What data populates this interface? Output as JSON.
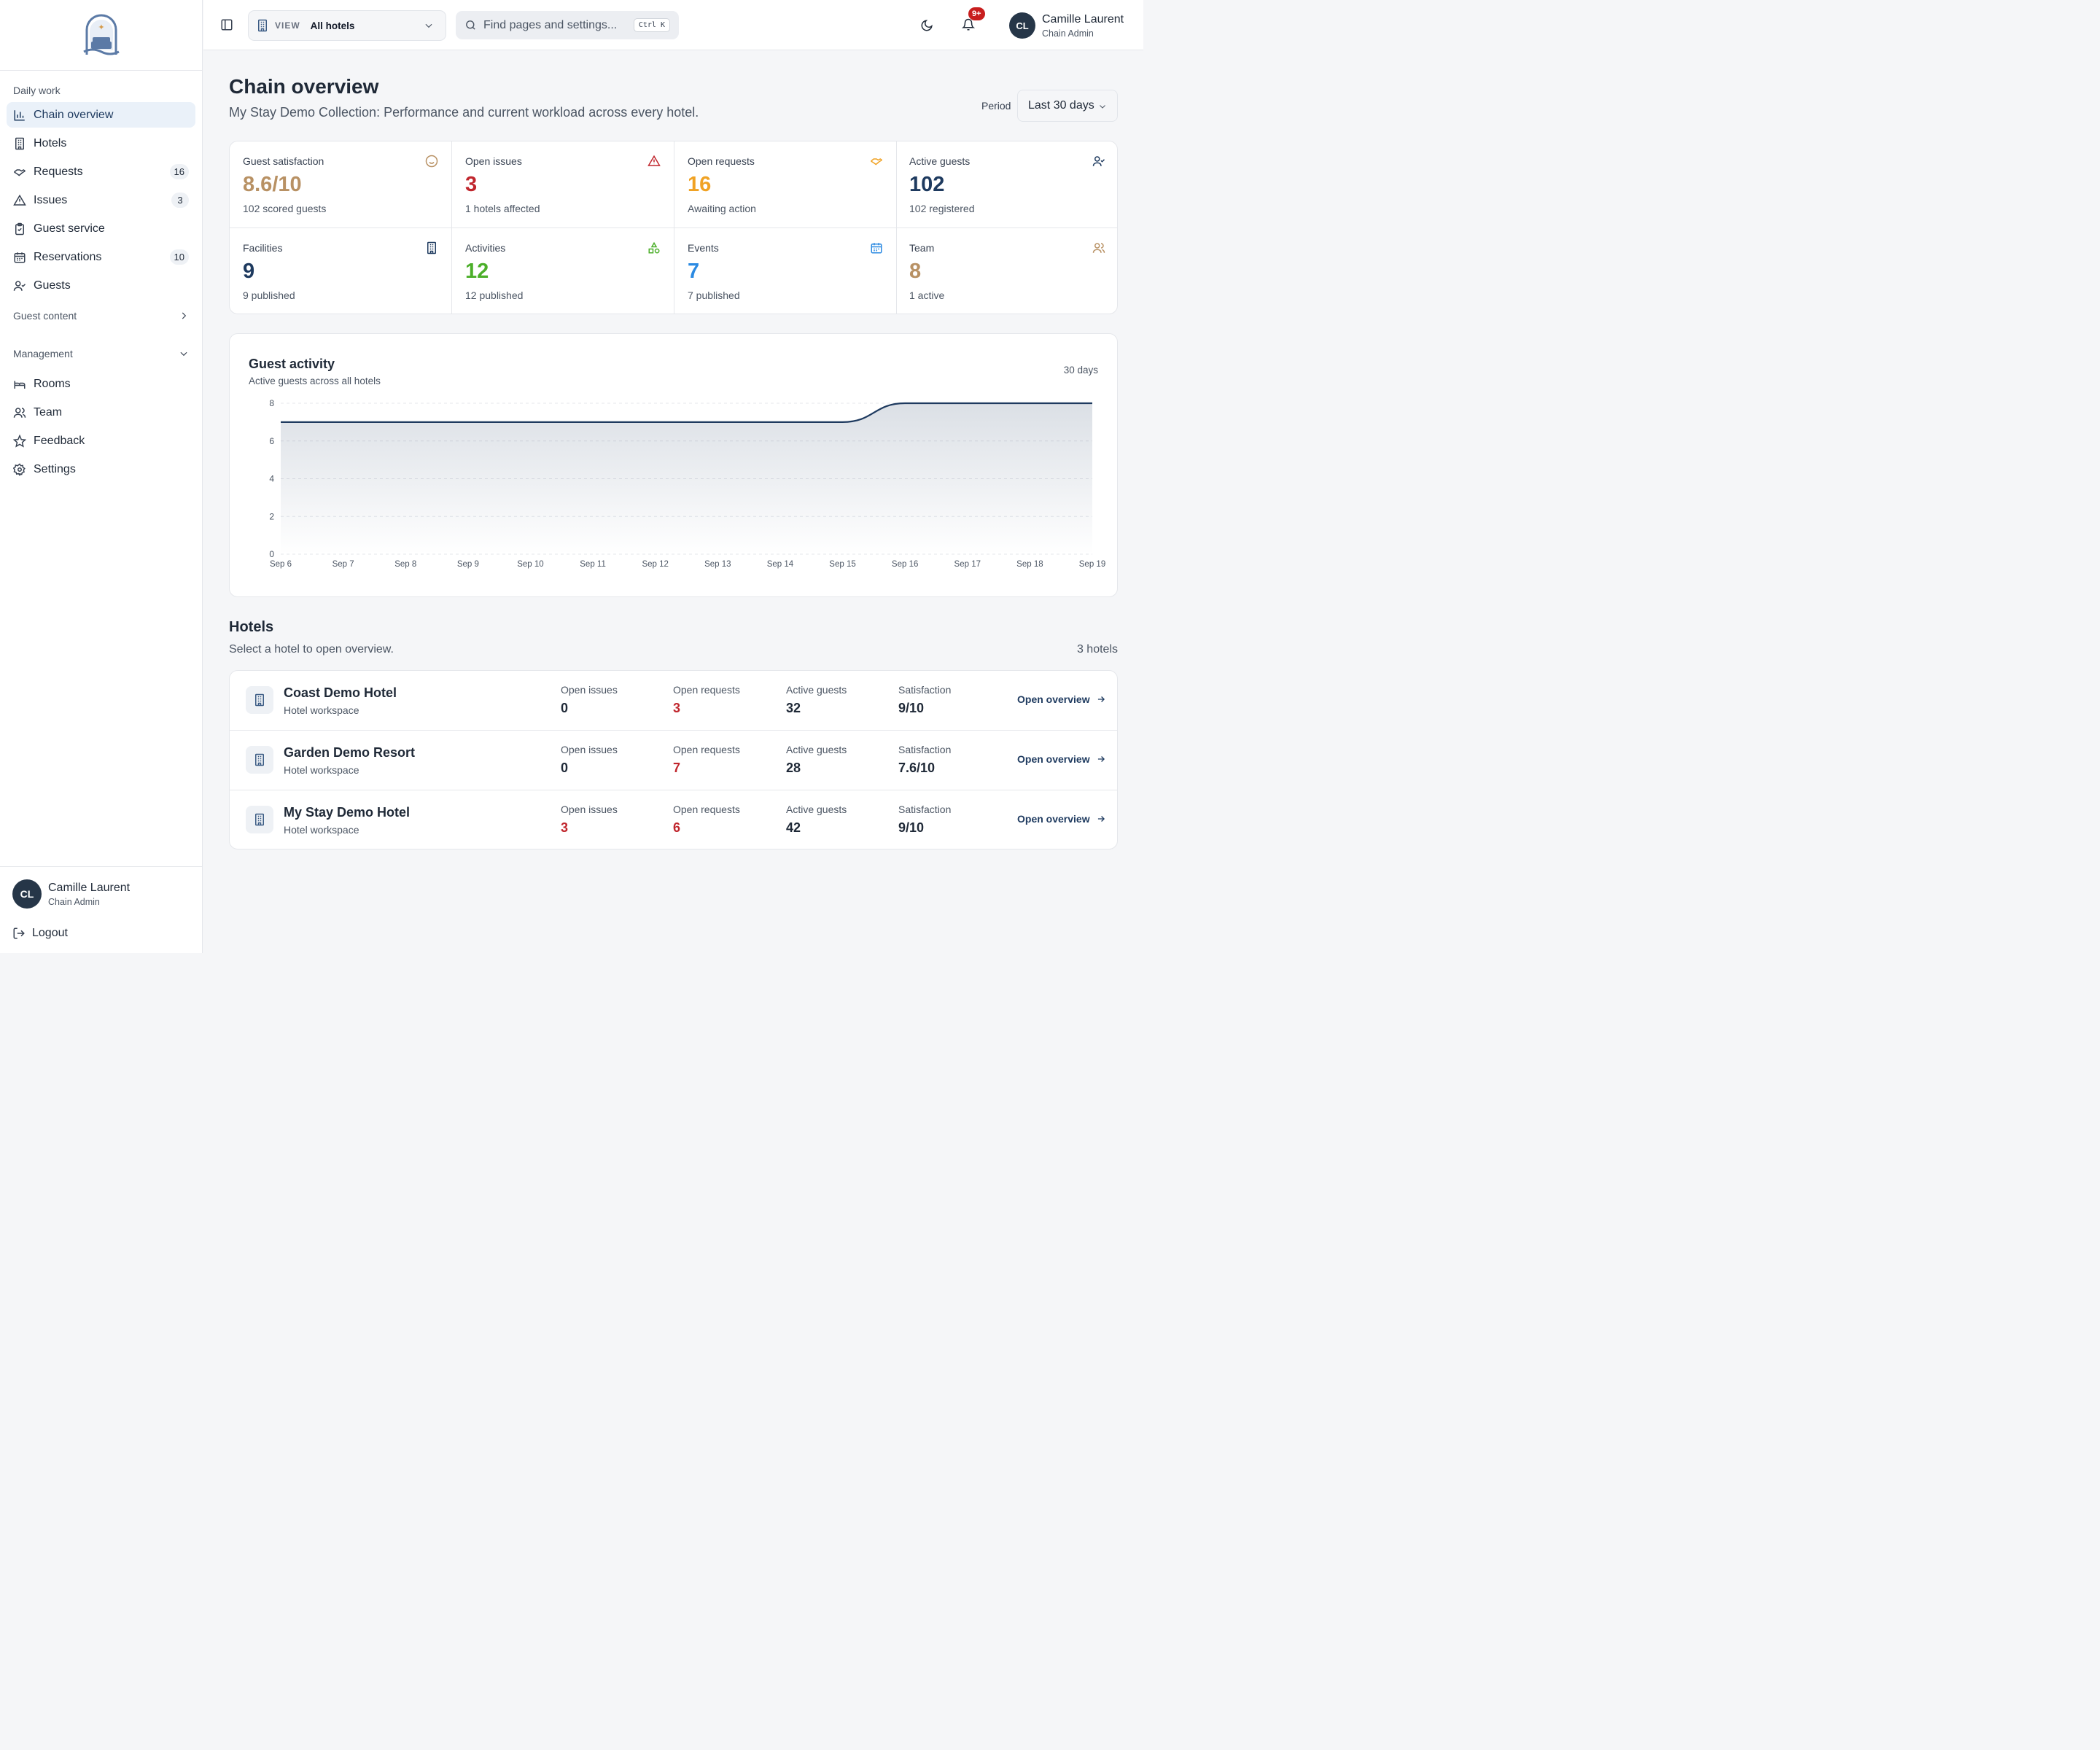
{
  "sidebar": {
    "logo": "hotel-logo",
    "daily_label": "Daily work",
    "daily_items": [
      {
        "label": "Chain overview",
        "icon": "bar-chart-icon",
        "active": true,
        "badge": ""
      },
      {
        "label": "Hotels",
        "icon": "building-icon",
        "badge": ""
      },
      {
        "label": "Requests",
        "icon": "handshake-icon",
        "badge": "16"
      },
      {
        "label": "Issues",
        "icon": "alert-triangle-icon",
        "badge": "3"
      },
      {
        "label": "Guest service",
        "icon": "clipboard-check-icon",
        "badge": ""
      },
      {
        "label": "Reservations",
        "icon": "calendar-icon",
        "badge": "10"
      },
      {
        "label": "Guests",
        "icon": "user-check-icon",
        "badge": ""
      }
    ],
    "guest_content_label": "Guest content",
    "management_label": "Management",
    "management_items": [
      {
        "label": "Rooms",
        "icon": "bed-icon"
      },
      {
        "label": "Team",
        "icon": "users-icon"
      },
      {
        "label": "Feedback",
        "icon": "star-icon"
      },
      {
        "label": "Settings",
        "icon": "gear-icon"
      }
    ],
    "footer": {
      "initials": "CL",
      "name": "Camille Laurent",
      "role": "Chain Admin",
      "logout": "Logout"
    }
  },
  "topbar": {
    "view_label": "VIEW",
    "view_value": "All hotels",
    "search_placeholder": "Find pages and settings...",
    "search_shortcut": "Ctrl K",
    "notifications": "9+",
    "user": {
      "initials": "CL",
      "name": "Camille Laurent",
      "role": "Chain Admin"
    }
  },
  "header": {
    "title": "Chain overview",
    "subtitle": "My Stay Demo Collection: Performance and current workload across every hotel.",
    "period_label": "Period",
    "period_value": "Last 30 days"
  },
  "stats": [
    {
      "label": "Guest satisfaction",
      "value": "8.6/10",
      "sub": "102 scored guests",
      "icon": "smile-icon",
      "color": "#b89164"
    },
    {
      "label": "Open issues",
      "value": "3",
      "sub": "1 hotels affected",
      "icon": "alert-triangle-icon",
      "color": "#c0262d"
    },
    {
      "label": "Open requests",
      "value": "16",
      "sub": "Awaiting action",
      "icon": "handshake-icon",
      "color": "#f0a224"
    },
    {
      "label": "Active guests",
      "value": "102",
      "sub": "102 registered",
      "icon": "user-check-icon",
      "color": "#1e3a5f"
    },
    {
      "label": "Facilities",
      "value": "9",
      "sub": "9 published",
      "icon": "building-icon",
      "color": "#1e3a5f"
    },
    {
      "label": "Activities",
      "value": "12",
      "sub": "12 published",
      "icon": "shapes-icon",
      "color": "#4caf2a"
    },
    {
      "label": "Events",
      "value": "7",
      "sub": "7 published",
      "icon": "calendar-icon",
      "color": "#2b8ae2"
    },
    {
      "label": "Team",
      "value": "8",
      "sub": "1 active",
      "icon": "users-icon",
      "color": "#b89164"
    }
  ],
  "chart": {
    "title": "Guest activity",
    "subtitle": "Active guests across all hotels",
    "range": "30 days"
  },
  "chart_data": {
    "type": "area",
    "x": [
      "Sep 6",
      "Sep 7",
      "Sep 8",
      "Sep 9",
      "Sep 10",
      "Sep 11",
      "Sep 12",
      "Sep 13",
      "Sep 14",
      "Sep 15",
      "Sep 16",
      "Sep 17",
      "Sep 18",
      "Sep 19"
    ],
    "series": [
      {
        "values": [
          7,
          7,
          7,
          7,
          7,
          7,
          7,
          7,
          7,
          7,
          8,
          8,
          8,
          8
        ]
      }
    ],
    "yticks": [
      0,
      2,
      4,
      6,
      8
    ],
    "ylim": [
      0,
      8
    ],
    "grid": true,
    "line_color": "#1e3a5f"
  },
  "hotels": {
    "title": "Hotels",
    "subtitle": "Select a hotel to open overview.",
    "count": "3 hotels",
    "labels": {
      "issues": "Open issues",
      "requests": "Open requests",
      "guests": "Active guests",
      "satisfaction": "Satisfaction",
      "link": "Open overview"
    },
    "rows": [
      {
        "name": "Coast Demo Hotel",
        "type": "Hotel workspace",
        "issues": "0",
        "requests": "3",
        "guests": "32",
        "satisfaction": "9/10"
      },
      {
        "name": "Garden Demo Resort",
        "type": "Hotel workspace",
        "issues": "0",
        "requests": "7",
        "guests": "28",
        "satisfaction": "7.6/10"
      },
      {
        "name": "My Stay Demo Hotel",
        "type": "Hotel workspace",
        "issues": "3",
        "requests": "6",
        "guests": "42",
        "satisfaction": "9/10"
      }
    ],
    "alert_color": "#c0262d"
  }
}
